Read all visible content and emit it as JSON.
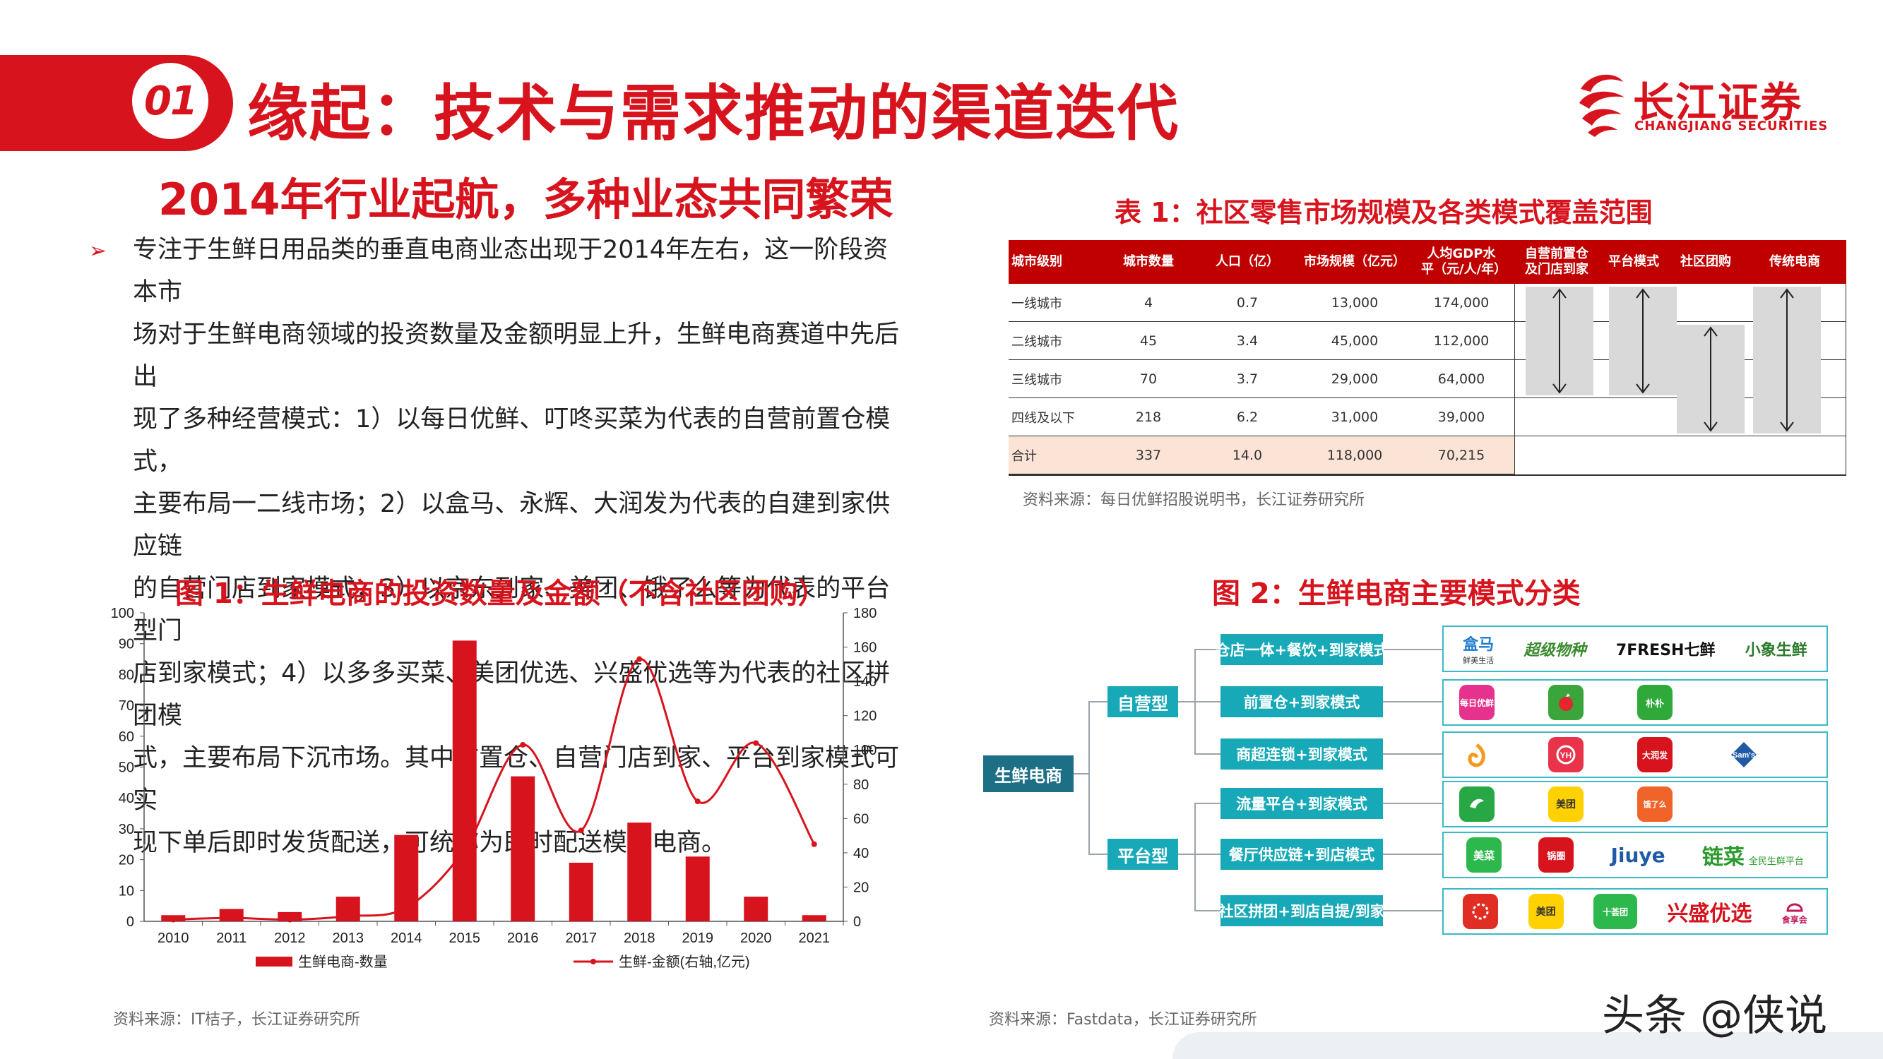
{
  "header": {
    "section_number": "01",
    "title": "缘起：技术与需求推动的渠道迭代",
    "logo_cn": "长江证券",
    "logo_en": "CHANGJIANG SECURITIES"
  },
  "left": {
    "subtitle": "2014年行业起航，多种业态共同繁荣",
    "bullet_lines": [
      "专注于生鲜日用品类的垂直电商业态出现于2014年左右，这一阶段资本市",
      "场对于生鲜电商领域的投资数量及金额明显上升，生鲜电商赛道中先后出",
      "现了多种经营模式：1）以每日优鲜、叮咚买菜为代表的自营前置仓模式，",
      "主要布局一二线市场；2）以盒马、永辉、大润发为代表的自建到家供应链",
      "的自营门店到家模式；3）以京东到家、美团、饿了么等为代表的平台型门",
      "店到家模式；4）以多多买菜、美团优选、兴盛优选等为代表的社区拼团模",
      "式，主要布局下沉市场。其中前置仓、自营门店到家、平台到家模式可实",
      "现下单后即时发货配送，可统称为即时配送模式电商。"
    ],
    "figure1_title": "图 1：生鲜电商的投资数量及金额（不含社区团购）",
    "figure1_source": "资料来源：IT桔子，长江证券研究所"
  },
  "chart_data": {
    "type": "bar",
    "categories": [
      "2010",
      "2011",
      "2012",
      "2013",
      "2014",
      "2015",
      "2016",
      "2017",
      "2018",
      "2019",
      "2020",
      "2021"
    ],
    "series": [
      {
        "name": "生鲜电商-数量",
        "kind": "bar",
        "axis": "left",
        "values": [
          2,
          4,
          3,
          8,
          28,
          91,
          47,
          19,
          32,
          21,
          8,
          2
        ]
      },
      {
        "name": "生鲜-金额(右轴,亿元)",
        "kind": "line",
        "axis": "right",
        "values": [
          1,
          2,
          1,
          3,
          8,
          42,
          103,
          53,
          153,
          70,
          104,
          45
        ]
      }
    ],
    "ylim_left": [
      0,
      100
    ],
    "yticks_left": [
      0,
      10,
      20,
      30,
      40,
      50,
      60,
      70,
      80,
      90,
      100
    ],
    "ylim_right": [
      0,
      180
    ],
    "yticks_right": [
      0,
      20,
      40,
      60,
      80,
      100,
      120,
      140,
      160,
      180
    ],
    "legend_position": "bottom",
    "colors": {
      "bar": "#d7141d",
      "line": "#d7141d"
    }
  },
  "table1": {
    "title": "表 1：社区零售市场规模及各类模式覆盖范围",
    "headers": [
      "城市级别",
      "城市数量",
      "人口（亿）",
      "市场规模（亿元）",
      "人均GDP水平（元/人/年）",
      "自营前置仓及门店到家",
      "平台模式",
      "社区团购",
      "传统电商"
    ],
    "rows": [
      [
        "一线城市",
        "4",
        "0.7",
        "13,000",
        "174,000"
      ],
      [
        "二线城市",
        "45",
        "3.4",
        "45,000",
        "112,000"
      ],
      [
        "三线城市",
        "70",
        "3.7",
        "29,000",
        "64,000"
      ],
      [
        "四线及以下",
        "218",
        "6.2",
        "31,000",
        "39,000"
      ],
      [
        "合计",
        "337",
        "14.0",
        "118,000",
        "70,215"
      ]
    ],
    "coverage": [
      {
        "model": "自营前置仓及门店到家",
        "from_row": 1,
        "to_row": 3
      },
      {
        "model": "平台模式",
        "from_row": 1,
        "to_row": 3
      },
      {
        "model": "社区团购",
        "from_row": 2,
        "to_row": 4
      },
      {
        "model": "传统电商",
        "from_row": 1,
        "to_row": 4
      }
    ],
    "source": "资料来源：每日优鲜招股说明书，长江证券研究所"
  },
  "figure2": {
    "title": "图 2：生鲜电商主要模式分类",
    "root": "生鲜电商",
    "groups": [
      {
        "label": "自营型",
        "modes": [
          {
            "label": "仓店一体+餐饮+到家模式",
            "brands": [
              "盒马",
              "超级物种",
              "7FRESH七鲜",
              "小象生鲜"
            ]
          },
          {
            "label": "前置仓+到家模式",
            "brands": [
              "每日优鲜",
              "叮咚买菜",
              "朴朴超市"
            ]
          },
          {
            "label": "商超连锁+到家模式",
            "brands": [
              "多点",
              "永辉",
              "大润发",
              "Sam's"
            ]
          }
        ]
      },
      {
        "label": "平台型",
        "modes": [
          {
            "label": "流量平台+到家模式",
            "brands": [
              "京东到家",
              "美团",
              "饿了么"
            ]
          },
          {
            "label": "餐厅供应链+到店模式",
            "brands": [
              "美菜",
              "锅圈食汇",
              "Jiuye",
              "链菜"
            ]
          },
          {
            "label": "社区拼团+到店自提/到家",
            "brands": [
              "拼多多",
              "美团",
              "十荟团",
              "兴盛优选",
              "食享会"
            ]
          }
        ]
      }
    ],
    "brand_texts": {
      "hema": "盒马",
      "hema_sub": "鲜美生活",
      "chaoji": "超级物种",
      "qixian": "7FRESH七鲜",
      "xiaoxiang": "小象生鲜",
      "meiriyouxian": "每日优鲜",
      "pupu": "朴朴",
      "darunfa": "大润发",
      "sams": "Sam's",
      "meituan": "美团",
      "meicai": "美菜",
      "guoquan": "锅圈",
      "jiuye": "Jiuye",
      "liancai": "链菜",
      "liancai_sub": "全民生鲜平台",
      "shihuituan": "十荟团",
      "xingsheng": "兴盛优选",
      "shixianghui": "食享会"
    },
    "source": "资料来源：Fastdata，长江证券研究所"
  },
  "watermark": "头条 @侠说"
}
